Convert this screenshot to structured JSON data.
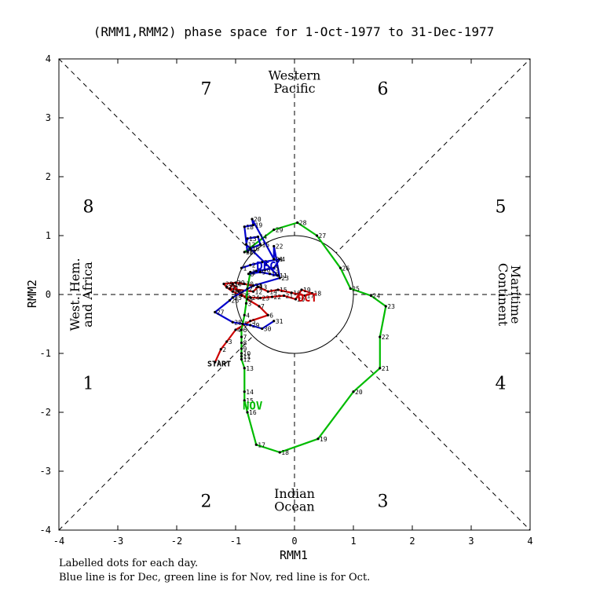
{
  "chart_data": {
    "type": "line",
    "title": "(RMM1,RMM2) phase space for  1-Oct-1977 to 31-Dec-1977",
    "xlabel": "RMM1",
    "ylabel": "RMM2",
    "xlim": [
      -4,
      4
    ],
    "ylim": [
      -4,
      4
    ],
    "xticks": [
      "-4",
      "-3",
      "-2",
      "-1",
      "0",
      "1",
      "2",
      "3",
      "4"
    ],
    "yticks": [
      "-4",
      "-3",
      "-2",
      "-1",
      "0",
      "1",
      "2",
      "3",
      "4"
    ],
    "phases": [
      {
        "num": "1",
        "x": -3.5,
        "y": -1.5
      },
      {
        "num": "2",
        "x": -1.5,
        "y": -3.5
      },
      {
        "num": "3",
        "x": 1.5,
        "y": -3.5
      },
      {
        "num": "4",
        "x": 3.5,
        "y": -1.5
      },
      {
        "num": "5",
        "x": 3.5,
        "y": 1.5
      },
      {
        "num": "6",
        "x": 1.5,
        "y": 3.5
      },
      {
        "num": "7",
        "x": -1.5,
        "y": 3.5
      },
      {
        "num": "8",
        "x": -3.5,
        "y": 1.5
      }
    ],
    "regions": {
      "top": [
        "Western",
        "Pacific"
      ],
      "bottom": [
        "Indian",
        "Ocean"
      ],
      "left": [
        "West. Hem.",
        "and Africa"
      ],
      "right": [
        "Maritime",
        "Continent"
      ]
    },
    "series": [
      {
        "name": "Oct",
        "color": "#cc0000",
        "month_label": "OCT",
        "month_label_at": [
          0.05,
          -0.12
        ],
        "start_label": "START",
        "start_label_at": [
          -1.48,
          -1.22
        ],
        "points": [
          {
            "d": "1",
            "x": -1.35,
            "y": -1.15
          },
          {
            "d": "2",
            "x": -1.25,
            "y": -0.93
          },
          {
            "d": "3",
            "x": -1.15,
            "y": -0.8
          },
          {
            "d": "4",
            "x": -1.0,
            "y": -0.6
          },
          {
            "d": "5",
            "x": -0.75,
            "y": -0.45
          },
          {
            "d": "6",
            "x": -0.45,
            "y": -0.35
          },
          {
            "d": "7",
            "x": -0.6,
            "y": -0.2
          },
          {
            "d": "8",
            "x": -0.8,
            "y": -0.08
          },
          {
            "d": "9",
            "x": -0.95,
            "y": 0.05
          },
          {
            "d": "10",
            "x": -1.05,
            "y": 0.18
          },
          {
            "d": "11",
            "x": -1.1,
            "y": 0.1
          },
          {
            "d": "12",
            "x": -0.7,
            "y": 0.05
          },
          {
            "d": "13",
            "x": -0.62,
            "y": 0.13
          },
          {
            "d": "14",
            "x": -0.45,
            "y": 0.05
          },
          {
            "d": "15",
            "x": -0.28,
            "y": 0.08
          },
          {
            "d": "16",
            "x": -0.05,
            "y": 0.03
          },
          {
            "d": "17",
            "x": 0.18,
            "y": -0.02
          },
          {
            "d": "18",
            "x": 0.3,
            "y": 0.02
          },
          {
            "d": "19",
            "x": 0.12,
            "y": 0.08
          },
          {
            "d": "20",
            "x": 0.02,
            "y": -0.08
          },
          {
            "d": "21",
            "x": -0.18,
            "y": -0.02
          },
          {
            "d": "22",
            "x": -0.38,
            "y": -0.04
          },
          {
            "d": "23",
            "x": -0.58,
            "y": -0.06
          },
          {
            "d": "24",
            "x": -0.75,
            "y": -0.05
          },
          {
            "d": "25",
            "x": -0.9,
            "y": -0.02
          },
          {
            "d": "26",
            "x": -1.05,
            "y": 0.05
          },
          {
            "d": "27",
            "x": -1.15,
            "y": 0.12
          },
          {
            "d": "28",
            "x": -1.2,
            "y": 0.18
          },
          {
            "d": "29",
            "x": -1.0,
            "y": 0.2
          },
          {
            "d": "30",
            "x": -0.85,
            "y": 0.18
          },
          {
            "d": "31",
            "x": -0.7,
            "y": 0.15
          }
        ]
      },
      {
        "name": "Nov",
        "color": "#00bb00",
        "month_label": "NOV",
        "month_label_at": [
          -0.88,
          -1.95
        ],
        "points": [
          {
            "d": "1",
            "x": -0.75,
            "y": 0.38
          },
          {
            "d": "2",
            "x": -0.8,
            "y": 0.1
          },
          {
            "d": "3",
            "x": -0.82,
            "y": -0.15
          },
          {
            "d": "4",
            "x": -0.85,
            "y": -0.35
          },
          {
            "d": "5",
            "x": -0.88,
            "y": -0.5
          },
          {
            "d": "6",
            "x": -0.9,
            "y": -0.6
          },
          {
            "d": "7",
            "x": -0.9,
            "y": -0.72
          },
          {
            "d": "8",
            "x": -0.9,
            "y": -0.82
          },
          {
            "d": "9",
            "x": -0.9,
            "y": -0.92
          },
          {
            "d": "10",
            "x": -0.9,
            "y": -1.0
          },
          {
            "d": "11",
            "x": -0.9,
            "y": -1.05
          },
          {
            "d": "12",
            "x": -0.9,
            "y": -1.1
          },
          {
            "d": "13",
            "x": -0.85,
            "y": -1.25
          },
          {
            "d": "14",
            "x": -0.85,
            "y": -1.65
          },
          {
            "d": "15",
            "x": -0.85,
            "y": -1.8
          },
          {
            "d": "16",
            "x": -0.8,
            "y": -2.0
          },
          {
            "d": "17",
            "x": -0.65,
            "y": -2.55
          },
          {
            "d": "18",
            "x": -0.25,
            "y": -2.68
          },
          {
            "d": "19",
            "x": 0.4,
            "y": -2.45
          },
          {
            "d": "20",
            "x": 1.0,
            "y": -1.65
          },
          {
            "d": "21",
            "x": 1.45,
            "y": -1.25
          },
          {
            "d": "22",
            "x": 1.45,
            "y": -0.72
          },
          {
            "d": "23",
            "x": 1.55,
            "y": -0.2
          },
          {
            "d": "24",
            "x": 1.3,
            "y": -0.02
          },
          {
            "d": "25",
            "x": 0.95,
            "y": 0.1
          },
          {
            "d": "26",
            "x": 0.78,
            "y": 0.45
          },
          {
            "d": "27",
            "x": 0.38,
            "y": 1.0
          },
          {
            "d": "28",
            "x": 0.05,
            "y": 1.22
          },
          {
            "d": "29",
            "x": -0.35,
            "y": 1.1
          },
          {
            "d": "30",
            "x": -0.85,
            "y": 0.72
          }
        ]
      },
      {
        "name": "Dec",
        "color": "#0000cc",
        "month_label": "DEC",
        "month_label_at": [
          -0.65,
          0.42
        ],
        "points": [
          {
            "d": "1",
            "x": -0.9,
            "y": 0.45
          },
          {
            "d": "2",
            "x": -0.75,
            "y": 0.5
          },
          {
            "d": "3",
            "x": -0.55,
            "y": 0.55
          },
          {
            "d": "4",
            "x": -0.25,
            "y": 0.6
          },
          {
            "d": "5",
            "x": -0.35,
            "y": 0.45
          },
          {
            "d": "6",
            "x": -0.5,
            "y": 0.42
          },
          {
            "d": "7",
            "x": -0.65,
            "y": 0.4
          },
          {
            "d": "8",
            "x": -0.78,
            "y": 0.35
          },
          {
            "d": "9",
            "x": -0.58,
            "y": 0.38
          },
          {
            "d": "10",
            "x": -0.42,
            "y": 0.35
          },
          {
            "d": "11",
            "x": -0.28,
            "y": 0.32
          },
          {
            "d": "12",
            "x": -0.82,
            "y": 0.85
          },
          {
            "d": "13",
            "x": -0.8,
            "y": 0.95
          },
          {
            "d": "14",
            "x": -0.62,
            "y": 0.98
          },
          {
            "d": "15",
            "x": -0.58,
            "y": 0.85
          },
          {
            "d": "16",
            "x": -0.75,
            "y": 0.78
          },
          {
            "d": "17",
            "x": -0.8,
            "y": 0.72
          },
          {
            "d": "18",
            "x": -0.85,
            "y": 1.15
          },
          {
            "d": "19",
            "x": -0.7,
            "y": 1.18
          },
          {
            "d": "20",
            "x": -0.72,
            "y": 1.28
          },
          {
            "d": "21",
            "x": -0.35,
            "y": 0.6
          },
          {
            "d": "22",
            "x": -0.35,
            "y": 0.82
          },
          {
            "d": "23",
            "x": -0.25,
            "y": 0.28
          },
          {
            "d": "24",
            "x": -0.7,
            "y": 0.15
          },
          {
            "d": "25",
            "x": -1.05,
            "y": -0.05
          },
          {
            "d": "26",
            "x": -1.1,
            "y": -0.1
          },
          {
            "d": "27",
            "x": -1.35,
            "y": -0.3
          },
          {
            "d": "28",
            "x": -1.05,
            "y": -0.47
          },
          {
            "d": "29",
            "x": -0.75,
            "y": -0.52
          },
          {
            "d": "30",
            "x": -0.55,
            "y": -0.58
          },
          {
            "d": "31",
            "x": -0.35,
            "y": -0.45
          }
        ]
      }
    ],
    "notes": [
      "Labelled dots for each day.",
      "Blue line is for Dec, green line is for Nov, red line is for Oct."
    ]
  }
}
